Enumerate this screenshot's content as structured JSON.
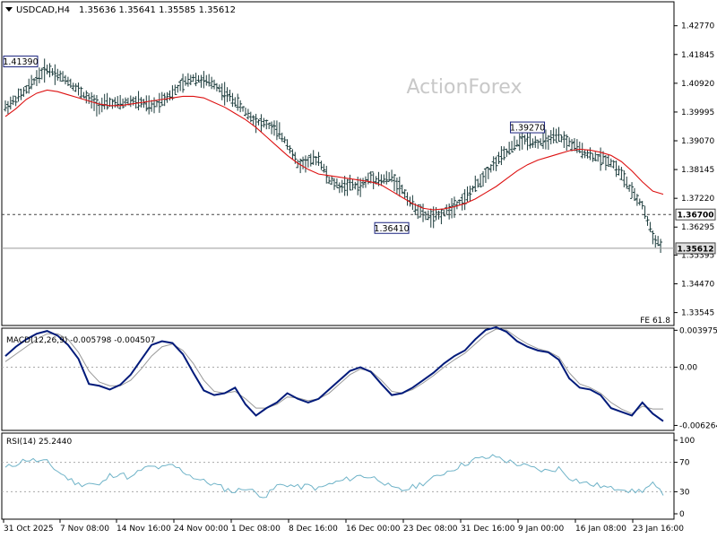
{
  "header": {
    "symbol": "USDCAD,H4",
    "ohlc": "1.35636 1.35641 1.35585 1.35612"
  },
  "watermark": "ActionForex",
  "colors": {
    "candles": "#1a3a3a",
    "ma": "#dd1111",
    "macd": "#001a7a",
    "signal": "#999999",
    "rsi": "#6fb3c8",
    "grid": "#aaaaaa",
    "label_border": "#1a237e"
  },
  "chart_data": [
    {
      "type": "line",
      "title": "USDCAD,H4",
      "ylim": [
        1.3313,
        1.4354
      ],
      "y_ticks": [
        "1.42770",
        "1.41845",
        "1.40920",
        "1.39995",
        "1.39070",
        "1.38145",
        "1.37220",
        "1.36295",
        "1.35395",
        "1.34470",
        "1.33545"
      ],
      "x_ticks": [
        "31 Oct 2025",
        "7 Nov 08:00",
        "14 Nov 16:00",
        "24 Nov 00:00",
        "1 Dec 08:00",
        "8 Dec 16:00",
        "16 Dec 00:00",
        "23 Dec 08:00",
        "31 Dec 16:00",
        "9 Jan 00:00",
        "16 Jan 08:00",
        "23 Jan 16:00"
      ],
      "series": [
        {
          "kind": "price",
          "values": [
            1.4015,
            1.404,
            1.407,
            1.411,
            1.4139,
            1.412,
            1.41,
            1.407,
            1.404,
            1.402,
            1.403,
            1.4025,
            1.4035,
            1.403,
            1.4015,
            1.404,
            1.406,
            1.409,
            1.411,
            1.41,
            1.409,
            1.406,
            1.4035,
            1.4,
            1.397,
            1.396,
            1.394,
            1.39,
            1.383,
            1.384,
            1.385,
            1.378,
            1.376,
            1.3765,
            1.376,
            1.379,
            1.378,
            1.379,
            1.375,
            1.37,
            1.367,
            1.366,
            1.3675,
            1.37,
            1.372,
            1.376,
            1.38,
            1.384,
            1.387,
            1.39,
            1.391,
            1.39,
            1.391,
            1.392,
            1.39,
            1.388,
            1.386,
            1.385,
            1.384,
            1.38,
            1.374,
            1.37,
            1.36,
            1.3561
          ]
        },
        {
          "kind": "ma",
          "values": [
            1.3985,
            1.401,
            1.404,
            1.406,
            1.407,
            1.4065,
            1.4055,
            1.4045,
            1.4035,
            1.4025,
            1.402,
            1.402,
            1.4025,
            1.403,
            1.4035,
            1.404,
            1.4045,
            1.405,
            1.405,
            1.4045,
            1.403,
            1.4015,
            1.3995,
            1.3975,
            1.395,
            1.392,
            1.389,
            1.386,
            1.3835,
            1.3815,
            1.38,
            1.3795,
            1.379,
            1.3785,
            1.378,
            1.3775,
            1.3765,
            1.3745,
            1.3725,
            1.3705,
            1.369,
            1.3685,
            1.3688,
            1.3695,
            1.3705,
            1.372,
            1.374,
            1.376,
            1.3785,
            1.381,
            1.383,
            1.3845,
            1.3855,
            1.3865,
            1.3875,
            1.388,
            1.3877,
            1.387,
            1.386,
            1.384,
            1.381,
            1.3775,
            1.3745,
            1.3735
          ]
        }
      ],
      "annotations": [
        {
          "text": "1.41390",
          "x_index": 1,
          "y": 1.4139
        },
        {
          "text": "1.39270",
          "x_index": 50,
          "y": 1.3927
        },
        {
          "text": "1.36410",
          "x_index": 37,
          "y": 1.3641
        }
      ],
      "levels": [
        {
          "text": "1.36700",
          "y": 1.367,
          "style": "dashed"
        },
        {
          "text": "1.35612",
          "y": 1.35612,
          "style": "solid",
          "current": true
        }
      ],
      "corner_label": "FE 61.8"
    },
    {
      "type": "line",
      "title": "MACD(12,26,9) -0.005798 -0.004507",
      "ylim": [
        -0.0068,
        0.0042
      ],
      "y_ticks": [
        "0.003975",
        "0.00",
        "-0.006264"
      ],
      "zero_line": true,
      "series": [
        {
          "kind": "macd",
          "values": [
            0.0012,
            0.0022,
            0.003,
            0.0036,
            0.0039,
            0.0034,
            0.0024,
            0.0009,
            -0.0018,
            -0.002,
            -0.0024,
            -0.0019,
            -0.0008,
            0.0008,
            0.0024,
            0.0028,
            0.0026,
            0.0014,
            -0.0006,
            -0.0025,
            -0.003,
            -0.0028,
            -0.0022,
            -0.004,
            -0.0052,
            -0.0044,
            -0.0038,
            -0.0028,
            -0.0034,
            -0.0038,
            -0.0034,
            -0.0024,
            -0.0014,
            -0.0004,
            0.0,
            -0.0005,
            -0.0018,
            -0.003,
            -0.0028,
            -0.0022,
            -0.0014,
            -0.0006,
            0.0004,
            0.0012,
            0.0018,
            0.003,
            0.004,
            0.0043,
            0.0038,
            0.0028,
            0.0022,
            0.0018,
            0.0016,
            0.0008,
            -0.0012,
            -0.0022,
            -0.0024,
            -0.003,
            -0.0044,
            -0.0048,
            -0.0052,
            -0.0038,
            -0.005,
            -0.0058
          ]
        },
        {
          "kind": "signal",
          "values": [
            0.0006,
            0.0014,
            0.0022,
            0.003,
            0.0036,
            0.0036,
            0.003,
            0.0016,
            -0.0004,
            -0.0016,
            -0.002,
            -0.002,
            -0.0014,
            -0.0002,
            0.0012,
            0.0022,
            0.0025,
            0.0018,
            0.0004,
            -0.0014,
            -0.0026,
            -0.0028,
            -0.0026,
            -0.0034,
            -0.0044,
            -0.0044,
            -0.004,
            -0.0032,
            -0.0033,
            -0.0036,
            -0.0034,
            -0.0028,
            -0.0018,
            -0.0008,
            -0.0002,
            -0.0004,
            -0.0014,
            -0.0026,
            -0.0028,
            -0.0024,
            -0.0017,
            -0.0009,
            0.0,
            0.0008,
            0.0015,
            0.0025,
            0.0035,
            0.0041,
            0.004,
            0.0032,
            0.0025,
            0.002,
            0.0017,
            0.0011,
            -0.0006,
            -0.0018,
            -0.0022,
            -0.0028,
            -0.0038,
            -0.0045,
            -0.005,
            -0.0042,
            -0.0045,
            -0.0045
          ]
        }
      ]
    },
    {
      "type": "line",
      "title": "RSI(14) 25.2440",
      "ylim": [
        0,
        100
      ],
      "y_ticks": [
        "100",
        "70",
        "30",
        "0"
      ],
      "levels": [
        70,
        30
      ],
      "series": [
        {
          "kind": "rsi",
          "values": [
            62,
            68,
            74,
            72,
            70,
            58,
            48,
            40,
            42,
            38,
            52,
            55,
            48,
            60,
            64,
            62,
            66,
            58,
            50,
            44,
            40,
            34,
            30,
            36,
            28,
            24,
            38,
            40,
            36,
            38,
            34,
            40,
            44,
            48,
            52,
            50,
            46,
            34,
            32,
            36,
            42,
            48,
            56,
            62,
            68,
            74,
            76,
            78,
            72,
            68,
            64,
            60,
            58,
            62,
            50,
            44,
            40,
            38,
            34,
            36,
            30,
            32,
            40,
            25
          ]
        }
      ]
    }
  ]
}
